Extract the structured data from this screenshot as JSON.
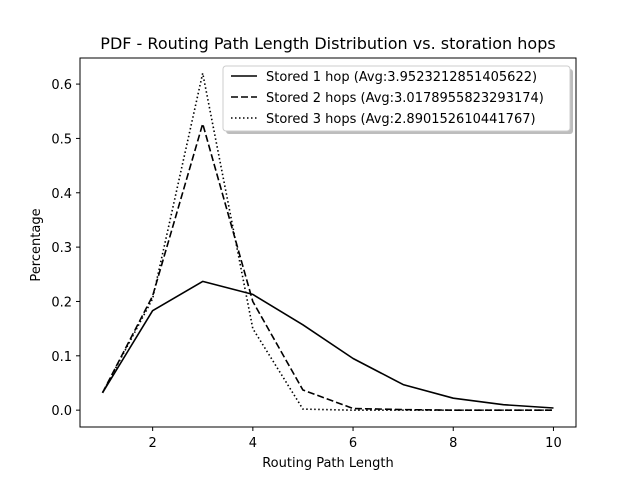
{
  "chart_data": {
    "type": "line",
    "title": "PDF - Routing Path Length Distribution vs. storation hops",
    "xlabel": "Routing Path Length",
    "ylabel": "Percentage",
    "xlim": [
      0.55,
      10.45
    ],
    "ylim": [
      -0.031,
      0.648
    ],
    "xticks": [
      2,
      4,
      6,
      8,
      10
    ],
    "yticks": [
      0.0,
      0.1,
      0.2,
      0.3,
      0.4,
      0.5,
      0.6
    ],
    "x": [
      1,
      2,
      3,
      4,
      5,
      6,
      7,
      8,
      9,
      10
    ],
    "grid": false,
    "legend_position": "top-right",
    "series": [
      {
        "name": "Stored 1 hop (Avg:3.9523212851405622)",
        "style": "solid",
        "color": "#000000",
        "values": [
          0.032,
          0.183,
          0.237,
          0.213,
          0.157,
          0.095,
          0.047,
          0.022,
          0.01,
          0.004
        ]
      },
      {
        "name": "Stored 2 hops (Avg:3.0178955823293174)",
        "style": "dashed",
        "color": "#000000",
        "values": [
          0.032,
          0.21,
          0.527,
          0.2,
          0.037,
          0.003,
          0.001,
          0.0,
          0.0,
          0.0
        ]
      },
      {
        "name": "Stored 3 hops (Avg:2.890152610441767)",
        "style": "dotted",
        "color": "#000000",
        "values": [
          0.032,
          0.205,
          0.62,
          0.15,
          0.002,
          0.0,
          0.0,
          0.0,
          0.0,
          0.0
        ]
      }
    ]
  }
}
